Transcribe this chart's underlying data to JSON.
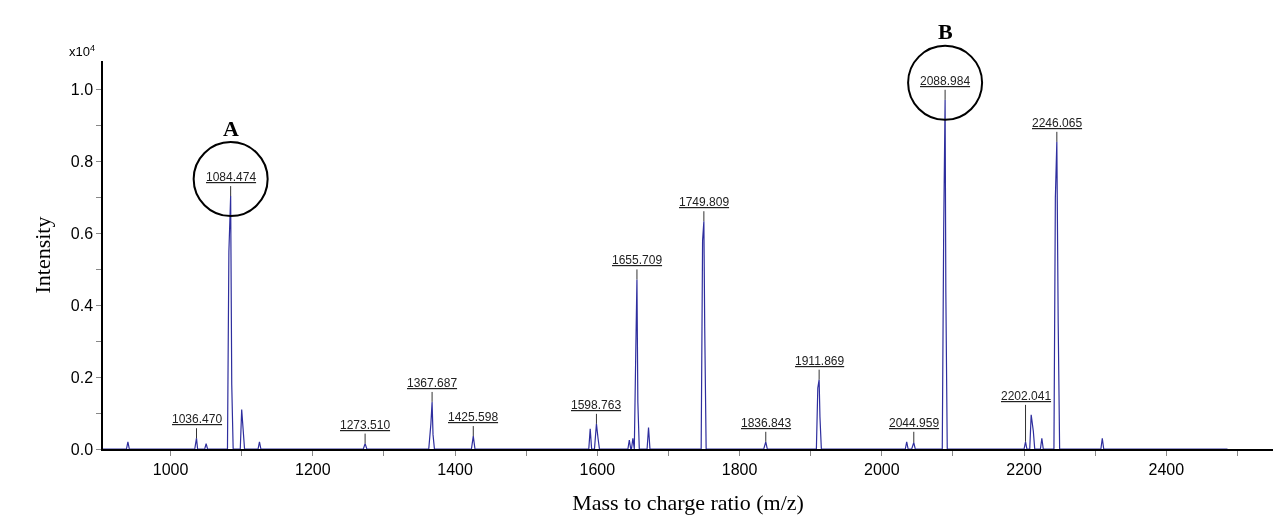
{
  "chart_data": {
    "type": "line",
    "xlabel": "Mass to charge ratio (m/z)",
    "ylabel": "Intensity",
    "x": [
      905,
      938,
      940,
      942,
      1034,
      1036.47,
      1038,
      1048,
      1050,
      1052,
      1080,
      1082,
      1084.474,
      1086,
      1088,
      1098,
      1100,
      1102,
      1104,
      1123,
      1125,
      1127,
      1271,
      1273.51,
      1276,
      1363,
      1366,
      1367.687,
      1369,
      1371,
      1423,
      1425.598,
      1428,
      1588,
      1590,
      1592,
      1596,
      1598.763,
      1601,
      1603,
      1643,
      1645,
      1647,
      1648,
      1650,
      1652,
      1654,
      1655.709,
      1657,
      1659,
      1670,
      1672,
      1674,
      1746,
      1748,
      1749.809,
      1751,
      1753,
      1834,
      1836.843,
      1839,
      1908,
      1910,
      1911.869,
      1913,
      1915,
      2033,
      2035,
      2037,
      2042,
      2044.959,
      2047,
      2085,
      2087,
      2088.984,
      2090,
      2092,
      2200,
      2202.041,
      2204,
      2208,
      2210,
      2213,
      2215,
      2223,
      2225,
      2227,
      2242,
      2244,
      2246.065,
      2248,
      2250,
      2308,
      2310,
      2312,
      2486
    ],
    "series": [
      {
        "color": "#2e2e9e",
        "values": [
          0,
          0,
          0.02,
          0,
          0,
          0.03,
          0,
          0,
          0.015,
          0,
          0,
          0.55,
          0.704,
          0.18,
          0,
          0,
          0.11,
          0.055,
          0,
          0,
          0.02,
          0,
          0,
          0.015,
          0,
          0,
          0.07,
          0.131,
          0.04,
          0,
          0,
          0.036,
          0,
          0,
          0.056,
          0,
          0,
          0.07,
          0.03,
          0,
          0,
          0.025,
          0,
          0,
          0.03,
          0,
          0.26,
          0.472,
          0.13,
          0,
          0,
          0.06,
          0,
          0,
          0.58,
          0.634,
          0.34,
          0,
          0,
          0.02,
          0,
          0,
          0.17,
          0.193,
          0.09,
          0,
          0,
          0.02,
          0,
          0,
          0.018,
          0,
          0,
          0.61,
          0.972,
          0.44,
          0,
          0,
          0.02,
          0,
          0,
          0.095,
          0.05,
          0,
          0,
          0.03,
          0,
          0,
          0.7,
          0.855,
          0.35,
          0,
          0,
          0.03,
          0,
          0
        ]
      }
    ],
    "xlim": [
      905,
      2550
    ],
    "xticks": [
      1000,
      {
        "value": 1100,
        "label": null
      },
      1200,
      {
        "value": 1300,
        "label": null
      },
      1400,
      {
        "value": 1500,
        "label": null
      },
      1600,
      {
        "value": 1700,
        "label": null
      },
      1800,
      {
        "value": 1900,
        "label": null
      },
      2000,
      {
        "value": 2100,
        "label": null
      },
      2200,
      {
        "value": 2300,
        "label": null
      },
      2400,
      {
        "value": 2500,
        "label": null
      }
    ],
    "ylim": [
      0,
      1.08
    ],
    "yticks": [
      {
        "value": 0,
        "label": "0.0"
      },
      {
        "value": 0.1,
        "label": null
      },
      {
        "value": 0.2,
        "label": "0.2"
      },
      {
        "value": 0.3,
        "label": null
      },
      {
        "value": 0.4,
        "label": "0.4"
      },
      {
        "value": 0.5,
        "label": null
      },
      {
        "value": 0.6,
        "label": "0.6"
      },
      {
        "value": 0.7,
        "label": null
      },
      {
        "value": 0.8,
        "label": "0.8"
      },
      {
        "value": 0.9,
        "label": null
      },
      {
        "value": 1.0,
        "label": "1.0"
      }
    ],
    "marker": "none",
    "line_style": "solid",
    "annotations": [
      {
        "text": "1036.470",
        "x": 1036.47,
        "y": 0.03
      },
      {
        "text": "1084.474",
        "x": 1084.474,
        "y": 0.704
      },
      {
        "text": "1273.510",
        "x": 1273.51,
        "y": 0.015
      },
      {
        "text": "1367.687",
        "x": 1367.687,
        "y": 0.131
      },
      {
        "text": "1425.598",
        "x": 1425.598,
        "y": 0.036
      },
      {
        "text": "1598.763",
        "x": 1598.763,
        "y": 0.07
      },
      {
        "text": "1655.709",
        "x": 1655.709,
        "y": 0.472
      },
      {
        "text": "1749.809",
        "x": 1749.809,
        "y": 0.634
      },
      {
        "text": "1836.843",
        "x": 1836.843,
        "y": 0.02
      },
      {
        "text": "1911.869",
        "x": 1911.869,
        "y": 0.193
      },
      {
        "text": "2044.959",
        "x": 2044.959,
        "y": 0.018
      },
      {
        "text": "2088.984",
        "x": 2088.984,
        "y": 0.972
      },
      {
        "text": "2202.041",
        "x": 2202.041,
        "y": 0.02
      },
      {
        "text": "2246.065",
        "x": 2246.065,
        "y": 0.855
      },
      {
        "text": "A",
        "x": 1084.474,
        "y": 0.704
      },
      {
        "text": "B",
        "x": 2088.984,
        "y": 0.972
      },
      "x10$^{4}$"
    ]
  }
}
